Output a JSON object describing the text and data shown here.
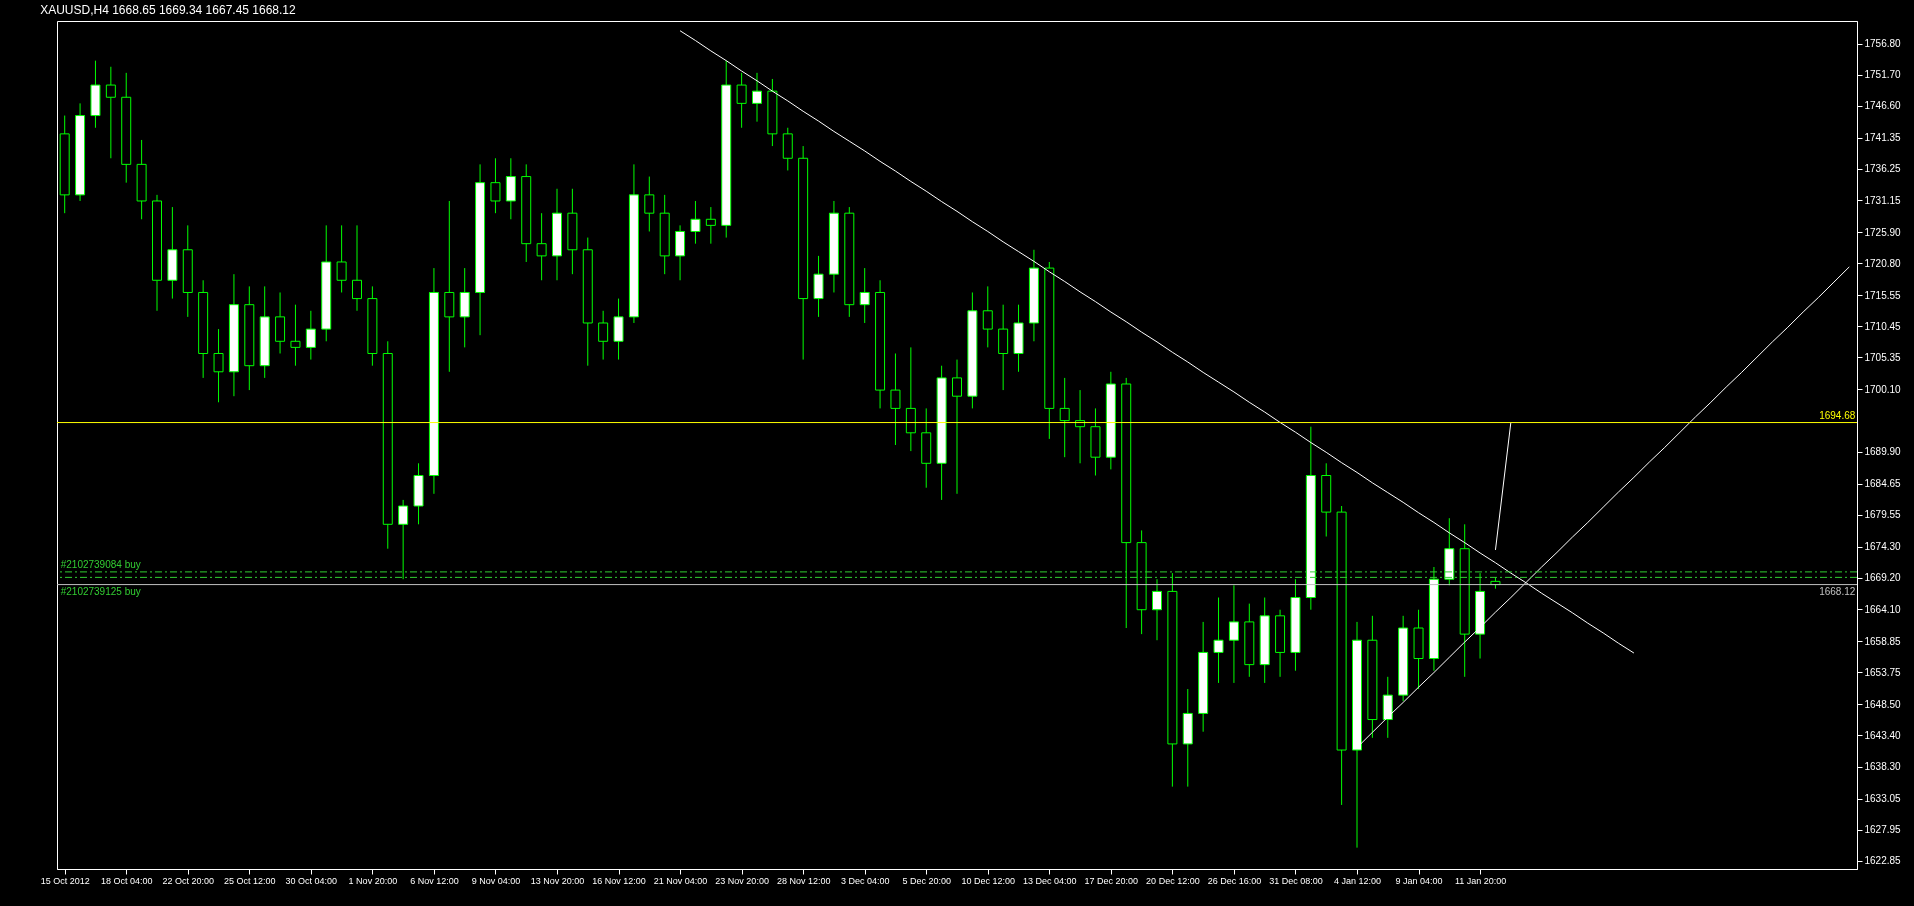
{
  "chart_data": {
    "type": "candlestick",
    "title": "XAUUSD,H4  1668.65 1669.34 1667.45 1668.12",
    "color": "#00ff00",
    "categories": [
      "15 Oct 2012",
      null,
      null,
      null,
      "18 Oct 04:00",
      null,
      null,
      null,
      "22 Oct 20:00",
      null,
      null,
      null,
      "25 Oct 12:00",
      null,
      null,
      null,
      "30 Oct 04:00",
      null,
      null,
      null,
      "1 Nov 20:00",
      null,
      null,
      null,
      "6 Nov 12:00",
      null,
      null,
      null,
      "9 Nov 04:00",
      null,
      null,
      null,
      "13 Nov 20:00",
      null,
      null,
      null,
      "16 Nov 12:00",
      null,
      null,
      null,
      "21 Nov 04:00",
      null,
      null,
      null,
      "23 Nov 20:00",
      null,
      null,
      null,
      "28 Nov 12:00",
      null,
      null,
      null,
      "3 Dec 04:00",
      null,
      null,
      null,
      "5 Dec 20:00",
      null,
      null,
      null,
      "10 Dec 12:00",
      null,
      null,
      null,
      "13 Dec 04:00",
      null,
      null,
      null,
      "17 Dec 20:00",
      null,
      null,
      null,
      "20 Dec 12:00",
      null,
      null,
      null,
      "26 Dec 16:00",
      null,
      null,
      null,
      "31 Dec 08:00",
      null,
      null,
      null,
      "4 Jan 12:00",
      null,
      null,
      null,
      "9 Jan 04:00",
      null,
      null,
      null,
      "11 Jan 20:00",
      null,
      null,
      null,
      null,
      null,
      null,
      null,
      null,
      null,
      null,
      null,
      null,
      null,
      null,
      null,
      null,
      null,
      null,
      null,
      null,
      null,
      null,
      null,
      null
    ],
    "ohlc": [
      [
        1742,
        1745,
        1729,
        1732
      ],
      [
        1732,
        1747,
        1731,
        1745
      ],
      [
        1745,
        1754,
        1743,
        1750
      ],
      [
        1750,
        1753,
        1738,
        1748
      ],
      [
        1748,
        1752,
        1734,
        1737
      ],
      [
        1737,
        1741,
        1728,
        1731
      ],
      [
        1731,
        1732,
        1713,
        1718
      ],
      [
        1718,
        1730,
        1715,
        1723
      ],
      [
        1723,
        1727,
        1712,
        1716
      ],
      [
        1716,
        1718,
        1702,
        1706
      ],
      [
        1706,
        1710,
        1698,
        1703
      ],
      [
        1703,
        1719,
        1699,
        1714
      ],
      [
        1714,
        1717,
        1700,
        1704
      ],
      [
        1704,
        1717,
        1702,
        1712
      ],
      [
        1712,
        1716,
        1706,
        1708
      ],
      [
        1708,
        1714,
        1704,
        1707
      ],
      [
        1707,
        1713,
        1705,
        1710
      ],
      [
        1710,
        1727,
        1708,
        1721
      ],
      [
        1721,
        1727,
        1716,
        1718
      ],
      [
        1718,
        1727,
        1713,
        1715
      ],
      [
        1715,
        1717,
        1704,
        1706
      ],
      [
        1706,
        1708,
        1674,
        1678
      ],
      [
        1678,
        1682,
        1669,
        1681
      ],
      [
        1681,
        1688,
        1678,
        1686
      ],
      [
        1686,
        1720,
        1683,
        1716
      ],
      [
        1716,
        1731,
        1703,
        1712
      ],
      [
        1712,
        1720,
        1707,
        1716
      ],
      [
        1716,
        1737,
        1709,
        1734
      ],
      [
        1734,
        1738,
        1729,
        1731
      ],
      [
        1731,
        1738,
        1728,
        1735
      ],
      [
        1735,
        1737,
        1721,
        1724
      ],
      [
        1724,
        1729,
        1718,
        1722
      ],
      [
        1722,
        1733,
        1718,
        1729
      ],
      [
        1729,
        1733,
        1719,
        1723
      ],
      [
        1723,
        1725,
        1704,
        1711
      ],
      [
        1711,
        1713,
        1705,
        1708
      ],
      [
        1708,
        1715,
        1705,
        1712
      ],
      [
        1712,
        1737,
        1711,
        1732
      ],
      [
        1732,
        1735,
        1726,
        1729
      ],
      [
        1729,
        1732,
        1719,
        1722
      ],
      [
        1722,
        1727,
        1718,
        1726
      ],
      [
        1726,
        1731,
        1724,
        1728
      ],
      [
        1728,
        1730,
        1724,
        1727
      ],
      [
        1727,
        1754,
        1725,
        1750
      ],
      [
        1750,
        1752,
        1743,
        1747
      ],
      [
        1747,
        1752,
        1744,
        1749
      ],
      [
        1749,
        1751,
        1740,
        1742
      ],
      [
        1742,
        1743,
        1736,
        1738
      ],
      [
        1738,
        1740,
        1705,
        1715
      ],
      [
        1715,
        1722,
        1712,
        1719
      ],
      [
        1719,
        1731,
        1716,
        1729
      ],
      [
        1729,
        1730,
        1712,
        1714
      ],
      [
        1714,
        1720,
        1711,
        1716
      ],
      [
        1716,
        1718,
        1697,
        1700
      ],
      [
        1700,
        1706,
        1691,
        1697
      ],
      [
        1697,
        1707,
        1690,
        1693
      ],
      [
        1693,
        1697,
        1684,
        1688
      ],
      [
        1688,
        1704,
        1682,
        1702
      ],
      [
        1702,
        1705,
        1683,
        1699
      ],
      [
        1699,
        1716,
        1697,
        1713
      ],
      [
        1713,
        1717,
        1707,
        1710
      ],
      [
        1710,
        1714,
        1700,
        1706
      ],
      [
        1706,
        1714,
        1703,
        1711
      ],
      [
        1711,
        1723,
        1708,
        1720
      ],
      [
        1720,
        1721,
        1692,
        1697
      ],
      [
        1697,
        1702,
        1689,
        1695
      ],
      [
        1695,
        1700,
        1688,
        1694
      ],
      [
        1694,
        1697,
        1686,
        1689
      ],
      [
        1689,
        1703,
        1687,
        1701
      ],
      [
        1701,
        1702,
        1661,
        1675
      ],
      [
        1675,
        1677,
        1660,
        1664
      ],
      [
        1664,
        1669,
        1659,
        1667
      ],
      [
        1667,
        1670,
        1635,
        1642
      ],
      [
        1642,
        1651,
        1635,
        1647
      ],
      [
        1647,
        1662,
        1644,
        1657
      ],
      [
        1657,
        1666,
        1652,
        1659
      ],
      [
        1659,
        1668,
        1652,
        1662
      ],
      [
        1662,
        1665,
        1653,
        1655
      ],
      [
        1655,
        1666,
        1652,
        1663
      ],
      [
        1663,
        1664,
        1653,
        1657
      ],
      [
        1657,
        1669,
        1654,
        1666
      ],
      [
        1666,
        1694,
        1664,
        1686
      ],
      [
        1686,
        1688,
        1676,
        1680
      ],
      [
        1680,
        1681,
        1632,
        1641
      ],
      [
        1641,
        1662,
        1625,
        1659
      ],
      [
        1659,
        1663,
        1643,
        1646
      ],
      [
        1646,
        1653,
        1643,
        1650
      ],
      [
        1650,
        1663,
        1649,
        1661
      ],
      [
        1661,
        1664,
        1651,
        1656
      ],
      [
        1656,
        1671,
        1654,
        1669
      ],
      [
        1669,
        1679,
        1668,
        1674
      ],
      [
        1674,
        1678,
        1653,
        1660
      ],
      [
        1660,
        1670,
        1656,
        1667
      ],
      [
        1668.65,
        1669.34,
        1667.45,
        1668.12
      ],
      null,
      null,
      null,
      null,
      null,
      null,
      null,
      null,
      null,
      null,
      null,
      null,
      null,
      null,
      null,
      null,
      null,
      null,
      null,
      null,
      null,
      null,
      null
    ],
    "series": [
      {
        "type": "line",
        "color": "#ffffff",
        "values": [
          null,
          null,
          null,
          null,
          null,
          null,
          null,
          null,
          null,
          null,
          null,
          null,
          null,
          null,
          null,
          null,
          null,
          null,
          null,
          null,
          null,
          null,
          null,
          null,
          null,
          null,
          null,
          null,
          null,
          null,
          null,
          null,
          null,
          null,
          null,
          null,
          null,
          null,
          null,
          null,
          1758.9,
          1757.3,
          1755.6,
          1754.0,
          1752.3,
          1750.7,
          1749.0,
          1747.4,
          1745.7,
          1744.1,
          1742.4,
          1740.8,
          1739.2,
          1737.5,
          1735.9,
          1734.2,
          1732.6,
          1730.9,
          1729.3,
          1727.6,
          1726.0,
          1724.3,
          1722.7,
          1721.1,
          1719.4,
          1717.8,
          1716.1,
          1714.5,
          1712.8,
          1711.2,
          1709.5,
          1707.9,
          1706.2,
          1704.6,
          1702.9,
          1701.3,
          1699.7,
          1698.0,
          1696.4,
          1694.7,
          1693.1,
          1691.4,
          1689.8,
          1688.1,
          1686.5,
          1684.8,
          1683.2,
          1681.6,
          1679.9,
          1678.3,
          1676.6,
          1675.0,
          1673.3,
          1671.7,
          1670.0,
          1668.4,
          1666.7,
          1665.1,
          1663.5,
          1661.8,
          1660.2,
          1658.5,
          1656.9,
          null,
          null,
          null,
          null,
          null,
          null,
          null,
          null,
          null,
          null,
          null,
          null,
          null,
          null
        ]
      },
      {
        "type": "line",
        "color": "#ffffff",
        "values": [
          null,
          null,
          null,
          null,
          null,
          null,
          null,
          null,
          null,
          null,
          null,
          null,
          null,
          null,
          null,
          null,
          null,
          null,
          null,
          null,
          null,
          null,
          null,
          null,
          null,
          null,
          null,
          null,
          null,
          null,
          null,
          null,
          null,
          null,
          null,
          null,
          null,
          null,
          null,
          null,
          null,
          null,
          null,
          null,
          null,
          null,
          null,
          null,
          null,
          null,
          null,
          null,
          null,
          null,
          null,
          null,
          null,
          null,
          null,
          null,
          null,
          null,
          null,
          null,
          null,
          null,
          null,
          null,
          null,
          null,
          null,
          null,
          null,
          null,
          null,
          null,
          null,
          null,
          null,
          null,
          null,
          null,
          null,
          null,
          1641.4,
          1643.9,
          1646.4,
          1648.8,
          1651.3,
          1653.7,
          1656.2,
          1658.7,
          1661.1,
          1663.6,
          1666.0,
          1668.5,
          1671.0,
          1673.4,
          1675.9,
          1678.3,
          1680.8,
          1683.3,
          1685.7,
          1688.2,
          1690.6,
          1693.1,
          1695.6,
          1698.0,
          1700.5,
          1702.9,
          1705.4,
          1707.9,
          1710.3,
          1712.8,
          1715.2,
          1717.7,
          1720.2
        ]
      },
      {
        "type": "line",
        "color": "#ffffff",
        "values": [
          null,
          null,
          null,
          null,
          null,
          null,
          null,
          null,
          null,
          null,
          null,
          null,
          null,
          null,
          null,
          null,
          null,
          null,
          null,
          null,
          null,
          null,
          null,
          null,
          null,
          null,
          null,
          null,
          null,
          null,
          null,
          null,
          null,
          null,
          null,
          null,
          null,
          null,
          null,
          null,
          null,
          null,
          null,
          null,
          null,
          null,
          null,
          null,
          null,
          null,
          null,
          null,
          null,
          null,
          null,
          null,
          null,
          null,
          null,
          null,
          null,
          null,
          null,
          null,
          null,
          null,
          null,
          null,
          null,
          null,
          null,
          null,
          null,
          null,
          null,
          null,
          null,
          null,
          null,
          null,
          null,
          null,
          null,
          null,
          null,
          null,
          null,
          null,
          null,
          null,
          null,
          null,
          null,
          1673.8,
          1694.7,
          null,
          null,
          null,
          null,
          null,
          null,
          null,
          null,
          null,
          null,
          null,
          null,
          null,
          null,
          null,
          null,
          null,
          null,
          null,
          null,
          null,
          null
        ]
      }
    ],
    "ylim": [
      1621.5,
      1760.5
    ],
    "yticks": [
      {
        "value": 1756.8,
        "label": "1756.80"
      },
      {
        "value": 1751.7,
        "label": "1751.70"
      },
      {
        "value": 1746.6,
        "label": "1746.60"
      },
      1741.35,
      1736.25,
      1731.15,
      {
        "value": 1725.9,
        "label": "1725.90"
      },
      {
        "value": 1720.8,
        "label": "1720.80"
      },
      1715.55,
      1710.45,
      1705.35,
      {
        "value": 1700.1,
        "label": "1700.10"
      },
      {
        "value": 1689.9,
        "label": "1689.90"
      },
      1684.65,
      1679.55,
      {
        "value": 1674.3,
        "label": "1674.30"
      },
      {
        "value": 1669.2,
        "label": "1669.20"
      },
      {
        "value": 1664.1,
        "label": "1664.10"
      },
      1658.85,
      1653.75,
      {
        "value": 1648.5,
        "label": "1648.50"
      },
      {
        "value": 1643.4,
        "label": "1643.40"
      },
      {
        "value": 1638.3,
        "label": "1638.30"
      },
      1633.05,
      1627.95,
      1622.85
    ],
    "ref_lines": [
      {
        "axis": "y",
        "value": 1694.68,
        "label": "1694.68",
        "color": "#ffff00"
      },
      {
        "axis": "y",
        "value": 1668.12,
        "label": "1668.12",
        "color": "#c0c0c0"
      },
      {
        "axis": "y",
        "value": 1670.2,
        "label": "#2102739084 buy",
        "color": "#32cd32",
        "line_style": "dashed"
      },
      {
        "axis": "y",
        "value": 1669.3,
        "label": "#2102739125 buy",
        "color": "#32cd32",
        "line_style": "dashed"
      }
    ]
  }
}
